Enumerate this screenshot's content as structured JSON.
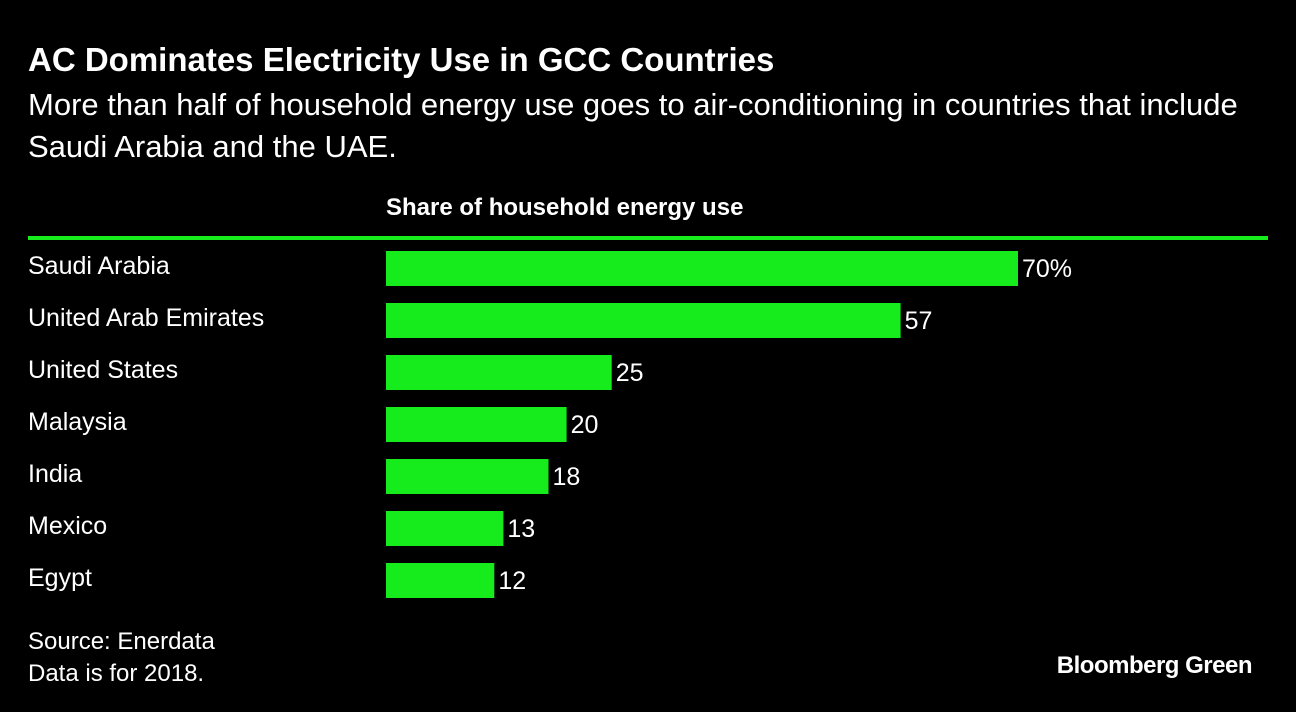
{
  "colors": {
    "background": "#000000",
    "text": "#ffffff",
    "bar": "#16eb1c",
    "rule": "#16eb1c"
  },
  "chart_data": {
    "type": "bar",
    "orientation": "horizontal",
    "title": "AC Dominates Electricity Use in GCC Countries",
    "subtitle": "More than half of household energy use goes to air-conditioning in countries that include Saudi Arabia and the UAE.",
    "column_header": "Share of household energy use",
    "categories": [
      "Saudi Arabia",
      "United Arab Emirates",
      "United States",
      "Malaysia",
      "India",
      "Mexico",
      "Egypt"
    ],
    "values": [
      70,
      57,
      25,
      20,
      18,
      13,
      12
    ],
    "value_labels": [
      "70%",
      "57",
      "25",
      "20",
      "18",
      "13",
      "12"
    ],
    "unit": "%",
    "xlim": [
      0,
      70
    ],
    "grid": false,
    "legend": "none"
  },
  "footer": {
    "source": "Source: Enerdata",
    "note": "Data is for 2018.",
    "brand": "Bloomberg Green"
  }
}
